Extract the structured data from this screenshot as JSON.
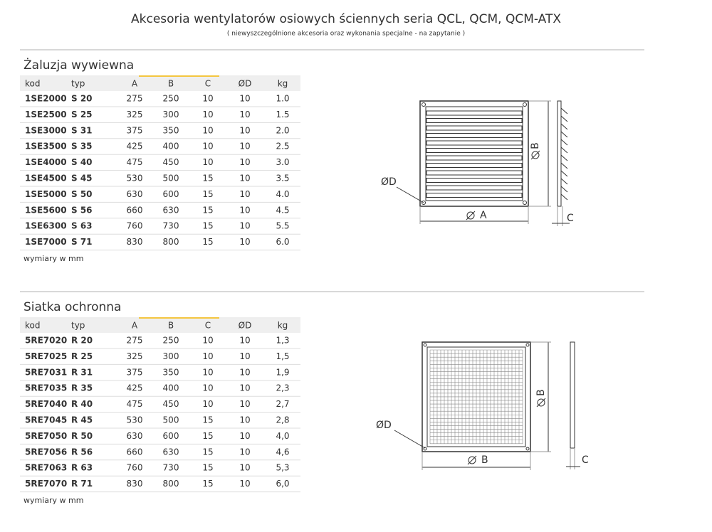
{
  "header": {
    "title": "Akcesoria wentylatorów osiowych ściennych seria QCL, QCM, QCM-ATX",
    "subtitle": "( niewyszczególnione akcesoria oraz wykonania specjalne - na zapytanie )"
  },
  "sections": [
    {
      "title": "Żaluzja wywiewna",
      "columns": [
        "kod",
        "typ",
        "A",
        "B",
        "C",
        "ØD",
        "kg"
      ],
      "rows": [
        [
          "1SE2000",
          "S 20",
          "275",
          "250",
          "10",
          "10",
          "1.0"
        ],
        [
          "1SE2500",
          "S 25",
          "325",
          "300",
          "10",
          "10",
          "1.5"
        ],
        [
          "1SE3000",
          "S 31",
          "375",
          "350",
          "10",
          "10",
          "2.0"
        ],
        [
          "1SE3500",
          "S 35",
          "425",
          "400",
          "10",
          "10",
          "2.5"
        ],
        [
          "1SE4000",
          "S 40",
          "475",
          "450",
          "10",
          "10",
          "3.0"
        ],
        [
          "1SE4500",
          "S 45",
          "530",
          "500",
          "15",
          "10",
          "3.5"
        ],
        [
          "1SE5000",
          "S 50",
          "630",
          "600",
          "15",
          "10",
          "4.0"
        ],
        [
          "1SE5600",
          "S 56",
          "660",
          "630",
          "15",
          "10",
          "4.5"
        ],
        [
          "1SE6300",
          "S 63",
          "760",
          "730",
          "15",
          "10",
          "5.5"
        ],
        [
          "1SE7000",
          "S 71",
          "830",
          "800",
          "15",
          "10",
          "6.0"
        ]
      ],
      "note": "wymiary w mm",
      "diagram_labels": [
        "ØD",
        "B",
        "A",
        "C"
      ]
    },
    {
      "title": "Siatka ochronna",
      "columns": [
        "kod",
        "typ",
        "A",
        "B",
        "C",
        "ØD",
        "kg"
      ],
      "rows": [
        [
          "5RE7020",
          "R 20",
          "275",
          "250",
          "10",
          "10",
          "1,3"
        ],
        [
          "5RE7025",
          "R 25",
          "325",
          "300",
          "10",
          "10",
          "1,5"
        ],
        [
          "5RE7031",
          "R 31",
          "375",
          "350",
          "10",
          "10",
          "1,9"
        ],
        [
          "5RE7035",
          "R 35",
          "425",
          "400",
          "10",
          "10",
          "2,3"
        ],
        [
          "5RE7040",
          "R 40",
          "475",
          "450",
          "10",
          "10",
          "2,7"
        ],
        [
          "5RE7045",
          "R 45",
          "530",
          "500",
          "15",
          "10",
          "2,8"
        ],
        [
          "5RE7050",
          "R 50",
          "630",
          "600",
          "15",
          "10",
          "4,0"
        ],
        [
          "5RE7056",
          "R 56",
          "660",
          "630",
          "15",
          "10",
          "4,6"
        ],
        [
          "5RE7063",
          "R 63",
          "760",
          "730",
          "15",
          "10",
          "5,3"
        ],
        [
          "5RE7070",
          "R 71",
          "830",
          "800",
          "15",
          "10",
          "6,0"
        ]
      ],
      "note": "wymiary w mm",
      "diagram_labels": [
        "ØD",
        "B",
        "B",
        "C"
      ]
    }
  ]
}
